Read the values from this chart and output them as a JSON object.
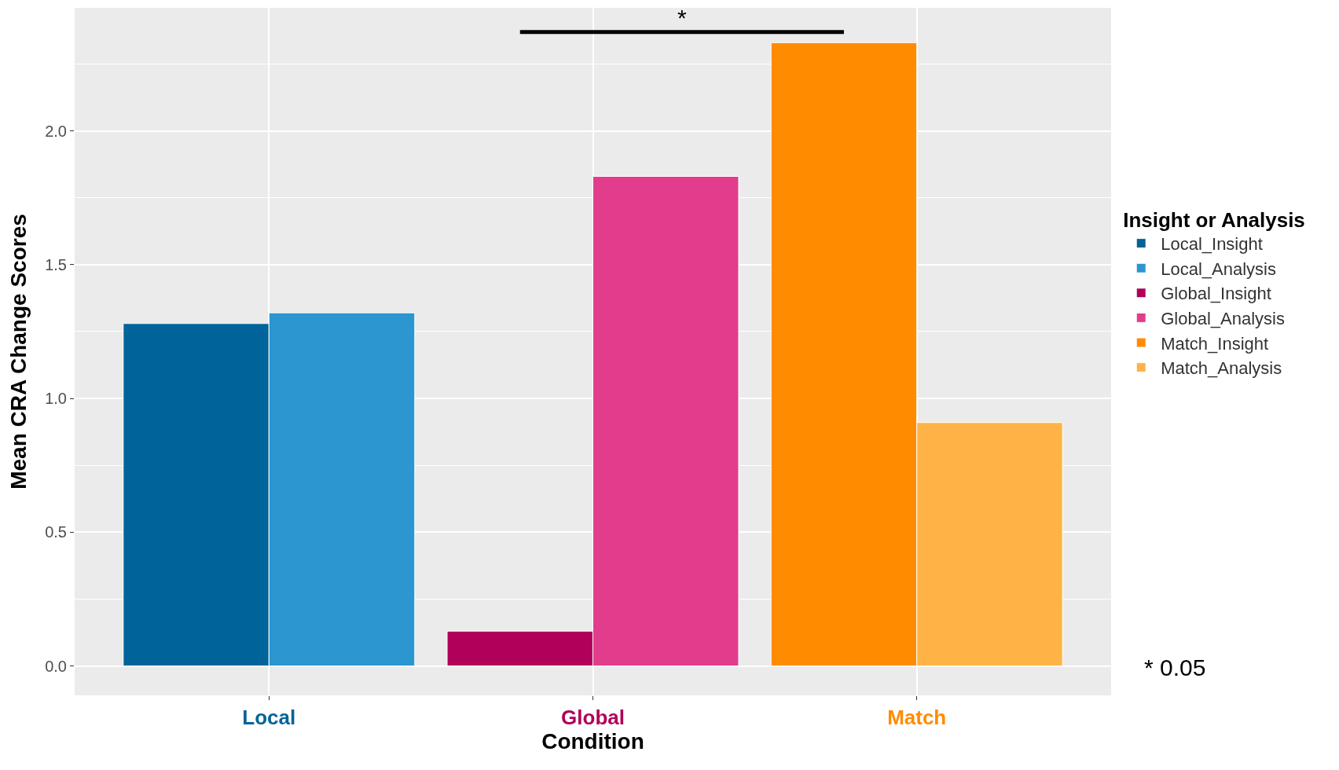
{
  "chart_data": {
    "type": "bar",
    "xlabel": "Condition",
    "ylabel": "Mean CRA Change Scores",
    "legend_title": "Insight or Analysis",
    "categories": [
      "Local",
      "Global",
      "Match"
    ],
    "series": [
      {
        "name": "Local_Insight",
        "color": "#006399",
        "values": [
          1.28,
          null,
          null
        ]
      },
      {
        "name": "Local_Analysis",
        "color": "#2b96cf",
        "values": [
          1.32,
          null,
          null
        ]
      },
      {
        "name": "Global_Insight",
        "color": "#b0005a",
        "values": [
          null,
          0.13,
          null
        ]
      },
      {
        "name": "Global_Analysis",
        "color": "#e23c8c",
        "values": [
          null,
          1.83,
          null
        ]
      },
      {
        "name": "Match_Insight",
        "color": "#ff8c00",
        "values": [
          null,
          null,
          2.33
        ]
      },
      {
        "name": "Match_Analysis",
        "color": "#ffb347",
        "values": [
          null,
          null,
          0.91
        ]
      }
    ],
    "ylim": [
      -0.11,
      2.46
    ],
    "yticks": [
      {
        "value": 0,
        "label": "0.0"
      },
      0.5,
      {
        "value": 1,
        "label": "1.0"
      },
      1.5,
      {
        "value": 2,
        "label": "2.0"
      }
    ],
    "grid": true,
    "legend": "right",
    "annotations": [
      "*",
      "* 0.05"
    ]
  }
}
